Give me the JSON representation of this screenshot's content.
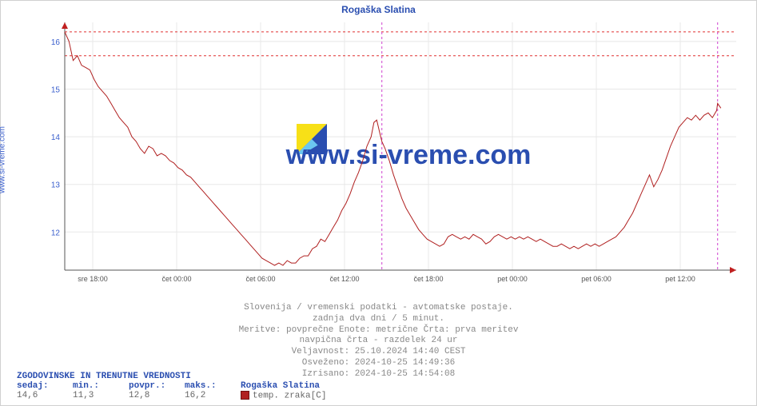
{
  "title": "Rogaška Slatina",
  "yaxis_label": "www.si-vreme.com",
  "watermark": "www.si-vreme.com",
  "chart": {
    "type": "line",
    "background_color": "#ffffff",
    "grid_color": "#e8e8e8",
    "axis_color": "#555555",
    "line_color": "#b02020",
    "line_width": 1,
    "hline_color": "#e03030",
    "vline_color": "#d040d0",
    "ytick_color": "#3a5fcd",
    "xtick_color": "#555555",
    "title_color": "#2a4eb0",
    "title_fontsize": 12,
    "tick_fontsize": 10,
    "x_range_hours": 48,
    "ylim": [
      11.2,
      16.4
    ],
    "yticks": [
      12,
      13,
      14,
      15,
      16
    ],
    "xtick_positions_h": [
      2,
      8,
      14,
      20,
      26,
      32,
      38,
      44
    ],
    "xtick_labels": [
      "sre 18:00",
      "čet 00:00",
      "čet 06:00",
      "čet 12:00",
      "čet 18:00",
      "pet 00:00",
      "pet 06:00",
      "pet 12:00"
    ],
    "hlines": [
      16.2,
      15.7
    ],
    "vline_at_h": 22.67,
    "cursor_vline_at_h": 46.67,
    "arrow_color": "#c02020",
    "series": [
      [
        0.0,
        16.2
      ],
      [
        0.3,
        16.0
      ],
      [
        0.6,
        15.6
      ],
      [
        0.9,
        15.7
      ],
      [
        1.2,
        15.5
      ],
      [
        1.5,
        15.45
      ],
      [
        1.8,
        15.4
      ],
      [
        2.1,
        15.2
      ],
      [
        2.4,
        15.05
      ],
      [
        2.7,
        14.95
      ],
      [
        3.0,
        14.85
      ],
      [
        3.3,
        14.7
      ],
      [
        3.6,
        14.55
      ],
      [
        3.9,
        14.4
      ],
      [
        4.2,
        14.3
      ],
      [
        4.5,
        14.2
      ],
      [
        4.8,
        14.0
      ],
      [
        5.1,
        13.9
      ],
      [
        5.4,
        13.75
      ],
      [
        5.7,
        13.65
      ],
      [
        6.0,
        13.8
      ],
      [
        6.3,
        13.75
      ],
      [
        6.6,
        13.6
      ],
      [
        6.9,
        13.65
      ],
      [
        7.2,
        13.6
      ],
      [
        7.5,
        13.5
      ],
      [
        7.8,
        13.45
      ],
      [
        8.1,
        13.35
      ],
      [
        8.4,
        13.3
      ],
      [
        8.7,
        13.2
      ],
      [
        9.0,
        13.15
      ],
      [
        9.3,
        13.05
      ],
      [
        9.6,
        12.95
      ],
      [
        9.9,
        12.85
      ],
      [
        10.2,
        12.75
      ],
      [
        10.5,
        12.65
      ],
      [
        10.8,
        12.55
      ],
      [
        11.1,
        12.45
      ],
      [
        11.4,
        12.35
      ],
      [
        11.7,
        12.25
      ],
      [
        12.0,
        12.15
      ],
      [
        12.3,
        12.05
      ],
      [
        12.6,
        11.95
      ],
      [
        12.9,
        11.85
      ],
      [
        13.2,
        11.75
      ],
      [
        13.5,
        11.65
      ],
      [
        13.8,
        11.55
      ],
      [
        14.1,
        11.45
      ],
      [
        14.4,
        11.4
      ],
      [
        14.7,
        11.35
      ],
      [
        15.0,
        11.3
      ],
      [
        15.3,
        11.35
      ],
      [
        15.6,
        11.3
      ],
      [
        15.9,
        11.4
      ],
      [
        16.2,
        11.35
      ],
      [
        16.5,
        11.35
      ],
      [
        16.8,
        11.45
      ],
      [
        17.1,
        11.5
      ],
      [
        17.4,
        11.5
      ],
      [
        17.7,
        11.65
      ],
      [
        18.0,
        11.7
      ],
      [
        18.3,
        11.85
      ],
      [
        18.6,
        11.8
      ],
      [
        18.9,
        11.95
      ],
      [
        19.2,
        12.1
      ],
      [
        19.5,
        12.25
      ],
      [
        19.8,
        12.45
      ],
      [
        20.1,
        12.6
      ],
      [
        20.4,
        12.8
      ],
      [
        20.7,
        13.05
      ],
      [
        21.0,
        13.25
      ],
      [
        21.3,
        13.5
      ],
      [
        21.6,
        13.8
      ],
      [
        21.9,
        14.0
      ],
      [
        22.1,
        14.3
      ],
      [
        22.3,
        14.35
      ],
      [
        22.5,
        14.1
      ],
      [
        22.67,
        13.9
      ],
      [
        22.9,
        13.75
      ],
      [
        23.2,
        13.5
      ],
      [
        23.5,
        13.2
      ],
      [
        23.8,
        12.95
      ],
      [
        24.1,
        12.7
      ],
      [
        24.4,
        12.5
      ],
      [
        24.7,
        12.35
      ],
      [
        25.0,
        12.2
      ],
      [
        25.3,
        12.05
      ],
      [
        25.6,
        11.95
      ],
      [
        25.9,
        11.85
      ],
      [
        26.2,
        11.8
      ],
      [
        26.5,
        11.75
      ],
      [
        26.8,
        11.7
      ],
      [
        27.1,
        11.75
      ],
      [
        27.4,
        11.9
      ],
      [
        27.7,
        11.95
      ],
      [
        28.0,
        11.9
      ],
      [
        28.3,
        11.85
      ],
      [
        28.6,
        11.9
      ],
      [
        28.9,
        11.85
      ],
      [
        29.2,
        11.95
      ],
      [
        29.5,
        11.9
      ],
      [
        29.8,
        11.85
      ],
      [
        30.1,
        11.75
      ],
      [
        30.4,
        11.8
      ],
      [
        30.7,
        11.9
      ],
      [
        31.0,
        11.95
      ],
      [
        31.3,
        11.9
      ],
      [
        31.6,
        11.85
      ],
      [
        31.9,
        11.9
      ],
      [
        32.2,
        11.85
      ],
      [
        32.5,
        11.9
      ],
      [
        32.8,
        11.85
      ],
      [
        33.1,
        11.9
      ],
      [
        33.4,
        11.85
      ],
      [
        33.7,
        11.8
      ],
      [
        34.0,
        11.85
      ],
      [
        34.3,
        11.8
      ],
      [
        34.6,
        11.75
      ],
      [
        34.9,
        11.7
      ],
      [
        35.2,
        11.7
      ],
      [
        35.5,
        11.75
      ],
      [
        35.8,
        11.7
      ],
      [
        36.1,
        11.65
      ],
      [
        36.4,
        11.7
      ],
      [
        36.7,
        11.65
      ],
      [
        37.0,
        11.7
      ],
      [
        37.3,
        11.75
      ],
      [
        37.6,
        11.7
      ],
      [
        37.9,
        11.75
      ],
      [
        38.2,
        11.7
      ],
      [
        38.5,
        11.75
      ],
      [
        38.8,
        11.8
      ],
      [
        39.1,
        11.85
      ],
      [
        39.4,
        11.9
      ],
      [
        39.7,
        12.0
      ],
      [
        40.0,
        12.1
      ],
      [
        40.3,
        12.25
      ],
      [
        40.6,
        12.4
      ],
      [
        40.9,
        12.6
      ],
      [
        41.2,
        12.8
      ],
      [
        41.5,
        13.0
      ],
      [
        41.8,
        13.2
      ],
      [
        42.1,
        12.95
      ],
      [
        42.4,
        13.1
      ],
      [
        42.7,
        13.3
      ],
      [
        43.0,
        13.55
      ],
      [
        43.3,
        13.8
      ],
      [
        43.6,
        14.0
      ],
      [
        43.9,
        14.2
      ],
      [
        44.2,
        14.3
      ],
      [
        44.5,
        14.4
      ],
      [
        44.8,
        14.35
      ],
      [
        45.1,
        14.45
      ],
      [
        45.4,
        14.35
      ],
      [
        45.7,
        14.45
      ],
      [
        46.0,
        14.5
      ],
      [
        46.3,
        14.4
      ],
      [
        46.6,
        14.55
      ],
      [
        46.67,
        14.7
      ],
      [
        46.9,
        14.6
      ]
    ]
  },
  "watermark_logo": {
    "colors": [
      "#f7e017",
      "#2a4eb0",
      "#6bc6f0"
    ]
  },
  "captions": [
    "Slovenija / vremenski podatki - avtomatske postaje.",
    "zadnja dva dni / 5 minut.",
    "Meritve: povprečne  Enote: metrične  Črta: prva meritev",
    "navpična črta - razdelek 24 ur",
    "Veljavnost: 25.10.2024 14:40 CEST",
    "Osveženo: 2024-10-25 14:49:36",
    "Izrisano: 2024-10-25 14:54:08"
  ],
  "legend": {
    "title": "ZGODOVINSKE IN TRENUTNE VREDNOSTI",
    "headers": [
      "sedaj:",
      "min.:",
      "povpr.:",
      "maks.:"
    ],
    "values": [
      "14,6",
      "11,3",
      "12,8",
      "16,2"
    ],
    "series_name": "Rogaška Slatina",
    "series_desc": "temp. zraka[C]",
    "swatch_color": "#b02020"
  }
}
